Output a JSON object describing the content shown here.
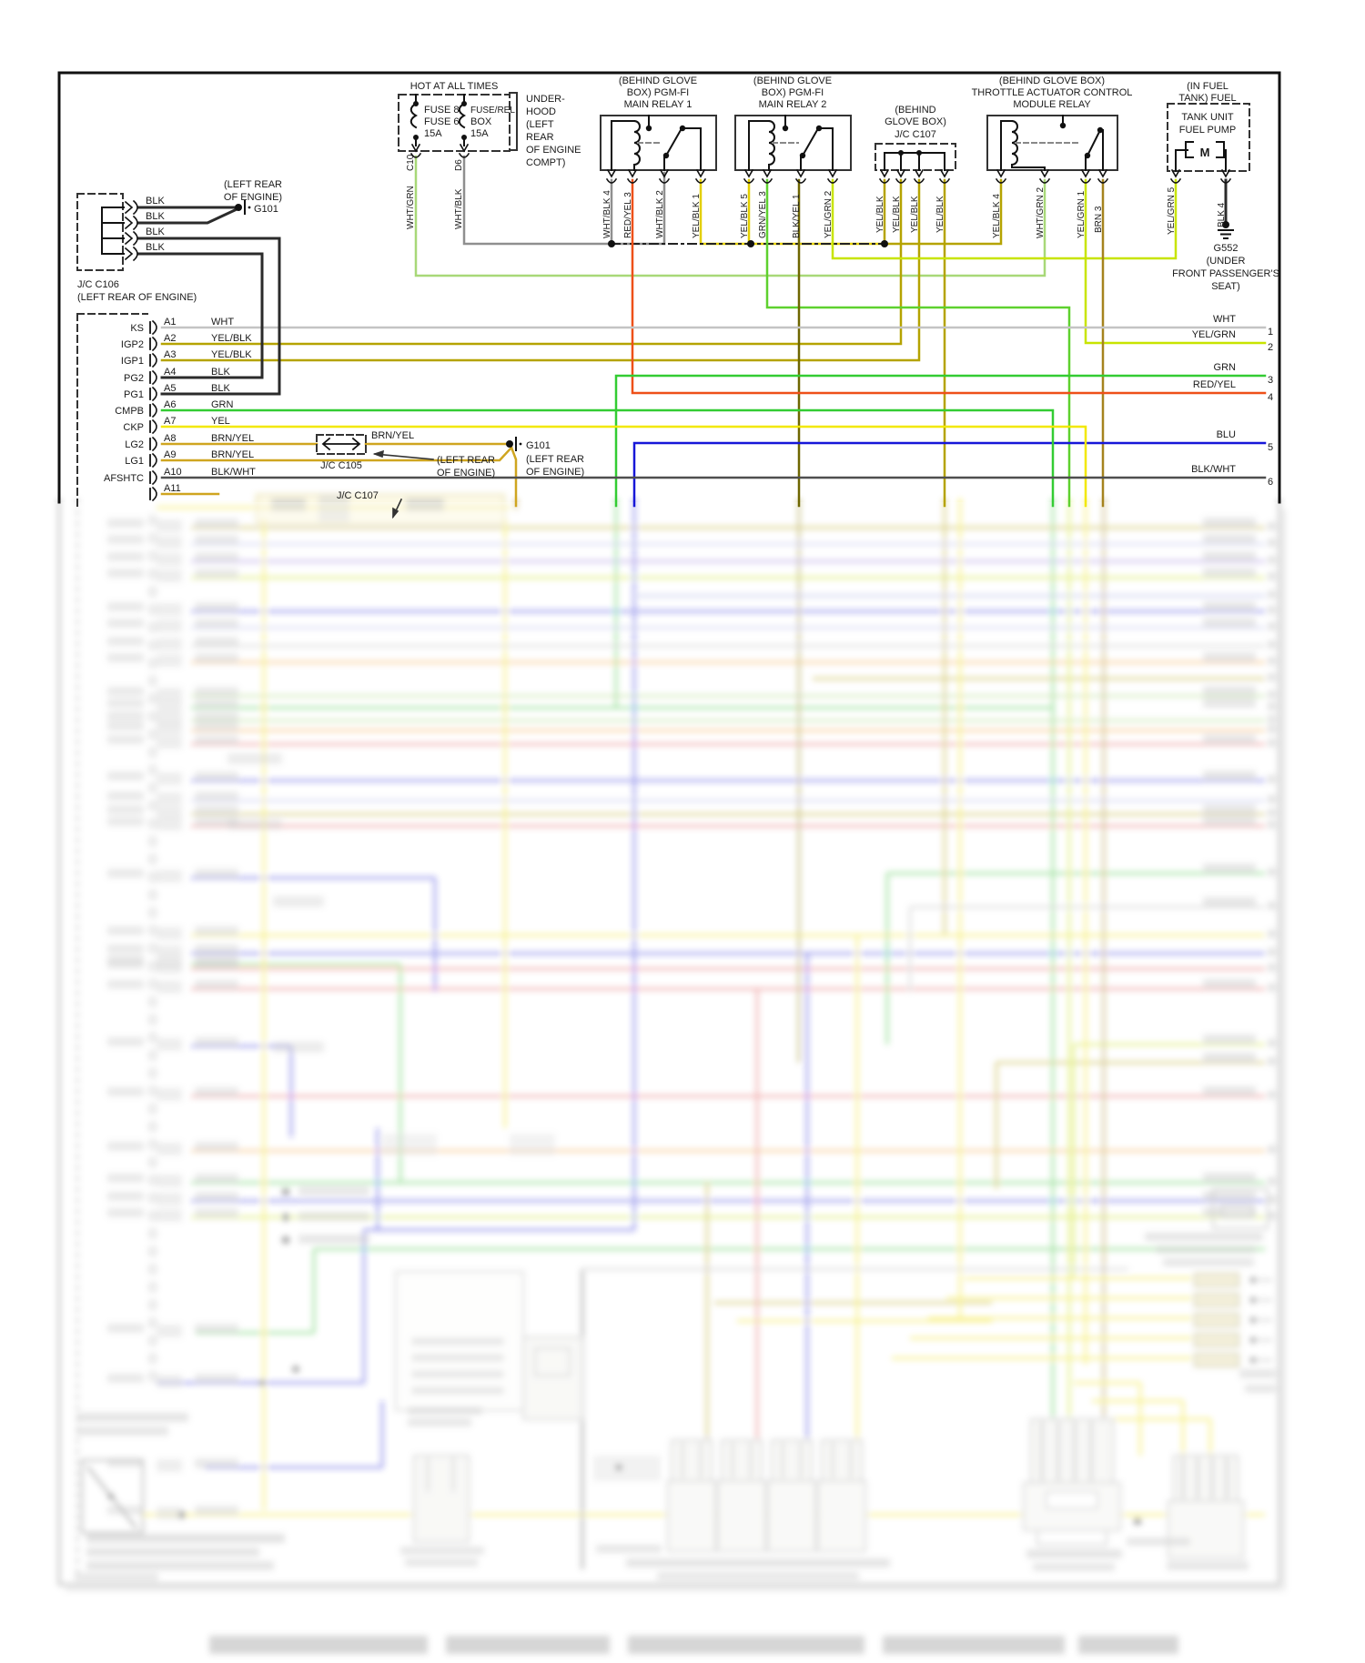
{
  "diagram": {
    "power_label": "HOT AT ALL TIMES",
    "fuse1": [
      "FUSE 8",
      "FUSE 6",
      "15A"
    ],
    "fuse2": [
      "FUSE/REL",
      "BOX",
      "15A"
    ],
    "fuse_wire1": {
      "id": "C10",
      "color": "WHT/GRN"
    },
    "fuse_wire2": {
      "id": "D6",
      "color": "WHT/BLK"
    },
    "underhood_note": [
      "UNDER-",
      "HOOD",
      "(LEFT",
      "REAR",
      "OF ENGINE",
      "COMPT)"
    ],
    "relay1": {
      "title": [
        "(BEHIND GLOVE",
        "BOX) PGM-FI",
        "MAIN RELAY 1"
      ],
      "pins": [
        "WHT/BLK 4",
        "RED/YEL 3",
        "WHT/BLK 2",
        "YEL/BLK 1"
      ]
    },
    "relay2": {
      "title": [
        "(BEHIND GLOVE",
        "BOX) PGM-FI",
        "MAIN RELAY 2"
      ],
      "pins": [
        "YEL/BLK 5",
        "GRN/YEL 3",
        "BLK/YEL 1",
        "YEL/GRN 2"
      ]
    },
    "jc107": {
      "title": [
        "(BEHIND",
        "GLOVE BOX)",
        "J/C C107"
      ],
      "pins": [
        "YEL/BLK",
        "YEL/BLK",
        "YEL/BLK",
        "YEL/BLK"
      ]
    },
    "tac_relay": {
      "title": [
        "(BEHIND GLOVE BOX)",
        "THROTTLE ACTUATOR CONTROL",
        "MODULE RELAY"
      ],
      "pins": [
        "YEL/BLK 4",
        "WHT/GRN 2",
        "YEL/GRN 1",
        "BRN 3"
      ]
    },
    "fuel_pump": {
      "title": [
        "(IN FUEL",
        "TANK) FUEL"
      ],
      "unit": [
        "TANK UNIT",
        "FUEL PUMP"
      ],
      "motor": "M",
      "pins": [
        "YEL/GRN 5",
        "BLK 4"
      ],
      "ground": "G552",
      "ground_loc": [
        "(UNDER",
        "FRONT PASSENGER'S",
        "SEAT)"
      ]
    },
    "jc106": {
      "label": "J/C C106",
      "loc": "(LEFT REAR OF ENGINE)",
      "wires": [
        "BLK",
        "BLK",
        "BLK",
        "BLK"
      ]
    },
    "g101_top": {
      "label": "G101",
      "loc": [
        "(LEFT REAR",
        "OF ENGINE)"
      ]
    },
    "g101_mid": {
      "label": "G101",
      "loc": [
        "(LEFT REAR",
        "OF ENGINE)"
      ]
    },
    "jc105": {
      "label": "J/C C105",
      "wire": "BRN/YEL",
      "loc": [
        "(LEFT REAR",
        "OF ENGINE)"
      ]
    },
    "jc107_ref": "J/C C107",
    "ecm_pins": [
      {
        "name": "KS",
        "pin": "A1",
        "color": "WHT"
      },
      {
        "name": "IGP2",
        "pin": "A2",
        "color": "YEL/BLK"
      },
      {
        "name": "IGP1",
        "pin": "A3",
        "color": "YEL/BLK"
      },
      {
        "name": "PG2",
        "pin": "A4",
        "color": "BLK"
      },
      {
        "name": "PG1",
        "pin": "A5",
        "color": "BLK"
      },
      {
        "name": "CMPB",
        "pin": "A6",
        "color": "GRN"
      },
      {
        "name": "CKP",
        "pin": "A7",
        "color": "YEL"
      },
      {
        "name": "LG2",
        "pin": "A8",
        "color": "BRN/YEL"
      },
      {
        "name": "LG1",
        "pin": "A9",
        "color": "BRN/YEL"
      },
      {
        "name": "AFSHTC",
        "pin": "A10",
        "color": "BLK/WHT"
      },
      {
        "name": "",
        "pin": "A11",
        "color": ""
      }
    ],
    "right_exits": [
      {
        "label": "WHT",
        "num": "1"
      },
      {
        "label": "YEL/GRN",
        "num": "2"
      },
      {
        "label": "GRN",
        "num": "3"
      },
      {
        "label": "RED/YEL",
        "num": "4"
      },
      {
        "label": "BLU",
        "num": "5"
      },
      {
        "label": "BLK/WHT",
        "num": "6"
      }
    ],
    "wire_colors": {
      "WHT": "#c4c4c4",
      "WHT_BLK": "#8f8f8f",
      "WHT_GRN": "#a8d878",
      "YEL": "#f2e800",
      "YEL_BLK": "#b5a300",
      "YEL_GRN": "#c8e400",
      "GRN": "#33cc33",
      "GRN_YEL": "#5ed12e",
      "BLK": "#2b2b2b",
      "BLK_WHT": "#4f4f4f",
      "BLK_YEL": "#6e6600",
      "BRN": "#a5831e",
      "BRN_YEL": "#cfa520",
      "RED_YEL": "#ee5019",
      "BLU": "#1717d8"
    }
  }
}
